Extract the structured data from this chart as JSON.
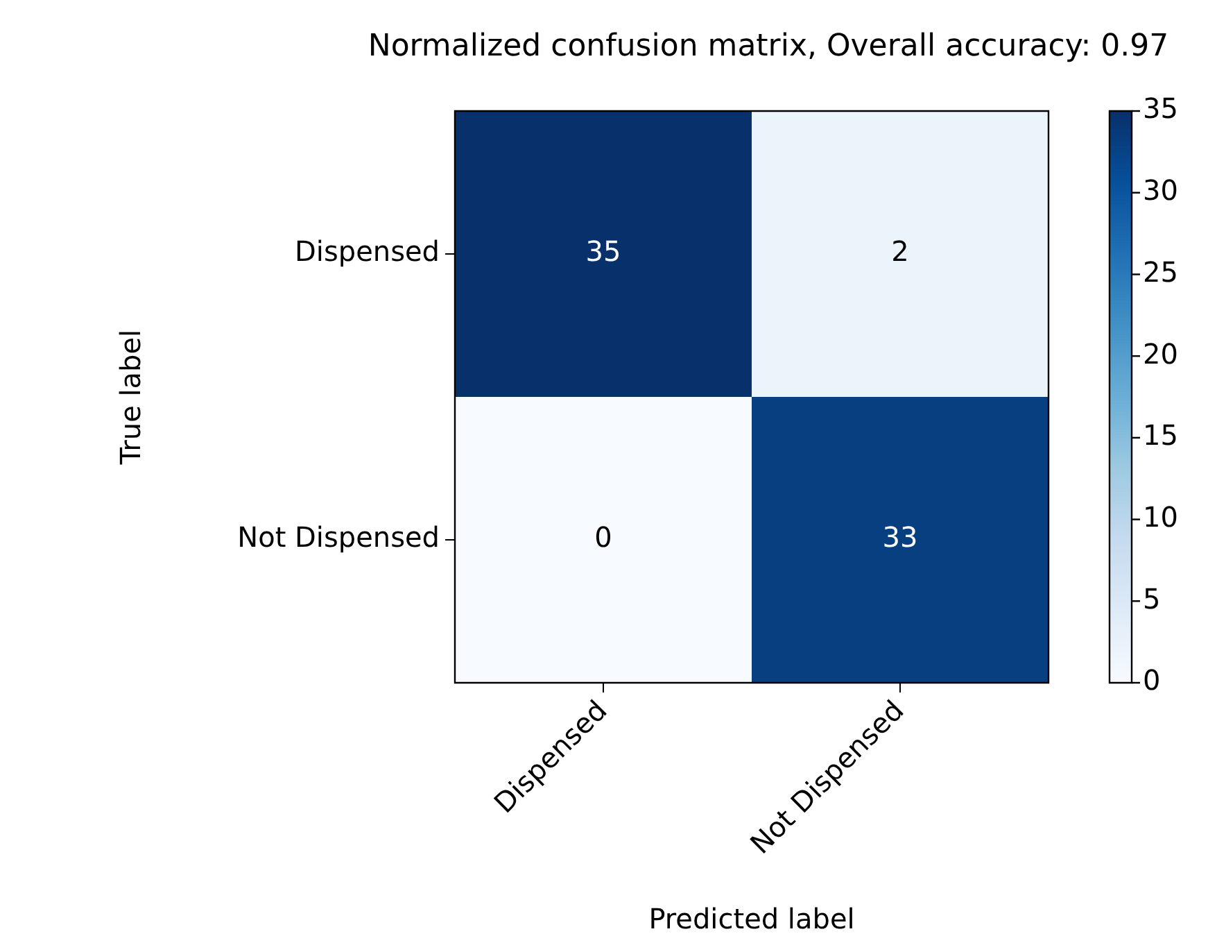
{
  "chart_data": {
    "type": "heatmap",
    "title": "Normalized confusion matrix, Overall accuracy: 0.97",
    "xlabel": "Predicted label",
    "ylabel": "True label",
    "categories": [
      "Dispensed",
      "Not Dispensed"
    ],
    "y_categories": [
      "Dispensed",
      "Not Dispensed"
    ],
    "cells": [
      [
        35,
        2
      ],
      [
        0,
        33
      ]
    ],
    "clim": [
      0,
      35
    ],
    "cticks": [
      0,
      5,
      10,
      15,
      20,
      25,
      30,
      35
    ],
    "data_labels": true
  }
}
